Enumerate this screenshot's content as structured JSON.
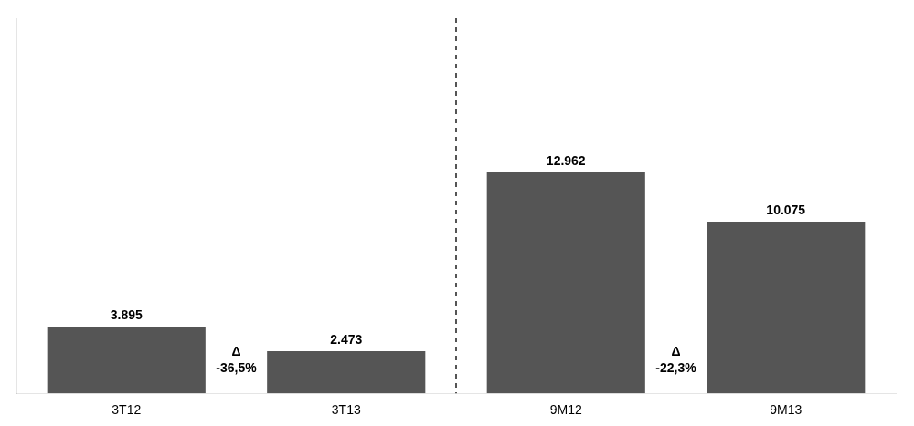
{
  "chart_data": {
    "type": "bar",
    "categories": [
      "3T12",
      "3T13",
      "9M12",
      "9M13"
    ],
    "values": [
      3.895,
      2.473,
      12.962,
      10.075
    ],
    "color": "#555555",
    "ylim": [
      0,
      22
    ],
    "grid": false,
    "data_labels": true,
    "tick_labels": "x",
    "annotations": [
      {
        "text": [
          "Δ",
          "-36,5%"
        ],
        "between": [
          "3T12",
          "3T13"
        ]
      },
      {
        "text": [
          "Δ",
          "-22,3%"
        ],
        "between": [
          "9M12",
          "9M13"
        ]
      }
    ],
    "divider": {
      "between": [
        "3T13",
        "9M12"
      ],
      "color": "#555555",
      "line_style": "dashed"
    }
  }
}
